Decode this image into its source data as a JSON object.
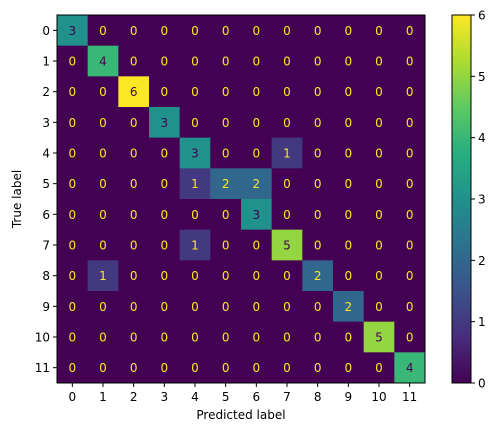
{
  "chart_data": {
    "type": "heatmap",
    "title": "",
    "xlabel": "Predicted label",
    "ylabel": "True label",
    "x_categories": [
      "0",
      "1",
      "2",
      "3",
      "4",
      "5",
      "6",
      "7",
      "8",
      "9",
      "10",
      "11"
    ],
    "y_categories": [
      "0",
      "1",
      "2",
      "3",
      "4",
      "5",
      "6",
      "7",
      "8",
      "9",
      "10",
      "11"
    ],
    "values": [
      [
        3,
        0,
        0,
        0,
        0,
        0,
        0,
        0,
        0,
        0,
        0,
        0
      ],
      [
        0,
        4,
        0,
        0,
        0,
        0,
        0,
        0,
        0,
        0,
        0,
        0
      ],
      [
        0,
        0,
        6,
        0,
        0,
        0,
        0,
        0,
        0,
        0,
        0,
        0
      ],
      [
        0,
        0,
        0,
        3,
        0,
        0,
        0,
        0,
        0,
        0,
        0,
        0
      ],
      [
        0,
        0,
        0,
        0,
        3,
        0,
        0,
        1,
        0,
        0,
        0,
        0
      ],
      [
        0,
        0,
        0,
        0,
        1,
        2,
        2,
        0,
        0,
        0,
        0,
        0
      ],
      [
        0,
        0,
        0,
        0,
        0,
        0,
        3,
        0,
        0,
        0,
        0,
        0
      ],
      [
        0,
        0,
        0,
        0,
        1,
        0,
        0,
        5,
        0,
        0,
        0,
        0
      ],
      [
        0,
        1,
        0,
        0,
        0,
        0,
        0,
        0,
        2,
        0,
        0,
        0
      ],
      [
        0,
        0,
        0,
        0,
        0,
        0,
        0,
        0,
        0,
        2,
        0,
        0
      ],
      [
        0,
        0,
        0,
        0,
        0,
        0,
        0,
        0,
        0,
        0,
        5,
        0
      ],
      [
        0,
        0,
        0,
        0,
        0,
        0,
        0,
        0,
        0,
        0,
        0,
        4
      ]
    ],
    "colormap": "viridis",
    "value_range": [
      0,
      6
    ],
    "colorbar_ticks": [
      0,
      1,
      2,
      3,
      4,
      5,
      6
    ],
    "text_color_low": "#fde725",
    "text_color_high": "#440154",
    "grid": false
  }
}
